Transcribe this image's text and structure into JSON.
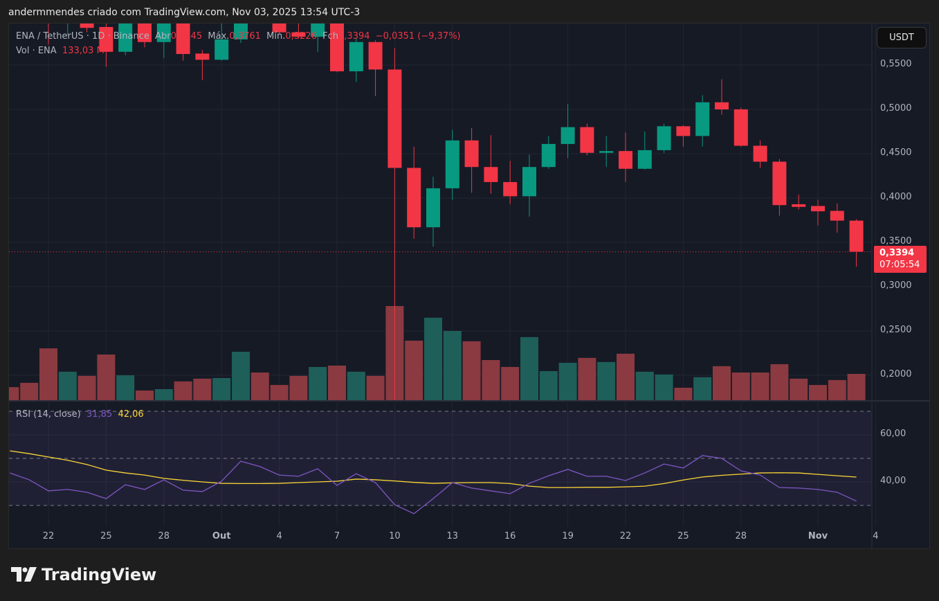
{
  "header": {
    "text": "andermmendes criado com TradingView.com, Nov 03, 2025 13:54 UTC-3"
  },
  "legend": {
    "symbol": "ENA / TetherUS · 1D · Binance",
    "open_label": "Abr",
    "open": "0,3745",
    "high_label": "Máx.",
    "high": "0,3761",
    "low_label": "Mín.",
    "low": "0,3226",
    "close_label": "Fch",
    "close": "0,3394",
    "change": "−0,0351 (−9,37%)",
    "volume_label": "Vol · ENA",
    "volume": "133,03 M"
  },
  "rsi_legend": {
    "label": "RSI (14, close)",
    "rsi": "31,85",
    "ma": "42,06"
  },
  "currency_button": "USDT",
  "last_price": {
    "price": "0,3394",
    "countdown": "07:05:54"
  },
  "colors": {
    "up": "#089981",
    "down": "#f23645",
    "rsi": "#7e57c2",
    "rsi_ma": "#fdd835",
    "background": "#161a25"
  },
  "price_axis": [
    "0,5500",
    "0,5000",
    "0,4500",
    "0,4000",
    "0,3500",
    "0,3000",
    "0,2500",
    "0,2000"
  ],
  "rsi_axis": [
    "60,00",
    "40,00"
  ],
  "time_axis": [
    {
      "label": "22",
      "date": "2025-09-22"
    },
    {
      "label": "25",
      "date": "2025-09-25"
    },
    {
      "label": "28",
      "date": "2025-09-28"
    },
    {
      "label": "Out",
      "date": "2025-10-01",
      "bold": true
    },
    {
      "label": "4",
      "date": "2025-10-04"
    },
    {
      "label": "7",
      "date": "2025-10-07"
    },
    {
      "label": "10",
      "date": "2025-10-10"
    },
    {
      "label": "13",
      "date": "2025-10-13"
    },
    {
      "label": "16",
      "date": "2025-10-16"
    },
    {
      "label": "19",
      "date": "2025-10-19"
    },
    {
      "label": "22",
      "date": "2025-10-22"
    },
    {
      "label": "25",
      "date": "2025-10-25"
    },
    {
      "label": "28",
      "date": "2025-10-28"
    },
    {
      "label": "Nov",
      "date": "2025-11-01",
      "bold": true
    },
    {
      "label": "4",
      "date": "2025-11-04"
    }
  ],
  "chart_data": {
    "type": "candlestick",
    "columns": [
      "date",
      "open",
      "high",
      "low",
      "close",
      "volume_M",
      "rsi",
      "rsi_ma"
    ],
    "price_range": [
      0.17,
      0.6
    ],
    "rsi_range": [
      20,
      80
    ],
    "rsi_bands": [
      70,
      50,
      30
    ],
    "rows": [
      [
        "2025-09-20",
        0.615,
        0.625,
        0.605,
        0.61,
        66,
        43.8,
        53.2
      ],
      [
        "2025-09-21",
        0.61,
        0.62,
        0.6,
        0.605,
        88,
        40.9,
        52.0
      ],
      [
        "2025-09-22",
        0.605,
        0.612,
        0.573,
        0.598,
        262,
        36.2,
        50.6
      ],
      [
        "2025-09-23",
        0.597,
        0.61,
        0.584,
        0.604,
        144,
        36.8,
        49.2
      ],
      [
        "2025-09-24",
        0.604,
        0.608,
        0.587,
        0.592,
        123,
        35.6,
        47.4
      ],
      [
        "2025-09-25",
        0.593,
        0.605,
        0.548,
        0.565,
        231,
        32.9,
        45.0
      ],
      [
        "2025-09-26",
        0.565,
        0.61,
        0.561,
        0.602,
        126,
        38.8,
        43.8
      ],
      [
        "2025-09-27",
        0.602,
        0.607,
        0.57,
        0.576,
        49,
        36.8,
        42.9
      ],
      [
        "2025-09-28",
        0.576,
        0.61,
        0.558,
        0.604,
        56,
        40.9,
        41.5
      ],
      [
        "2025-09-29",
        0.604,
        0.61,
        0.555,
        0.5625,
        95,
        36.5,
        40.7
      ],
      [
        "2025-09-30",
        0.563,
        0.567,
        0.533,
        0.556,
        109,
        35.9,
        40.0
      ],
      [
        "2025-10-01",
        0.556,
        0.6,
        0.555,
        0.579,
        112,
        40.3,
        39.4
      ],
      [
        "2025-10-02",
        0.579,
        0.612,
        0.575,
        0.605,
        245,
        48.8,
        39.3
      ],
      [
        "2025-10-03",
        0.605,
        0.615,
        0.598,
        0.6,
        140,
        46.5,
        39.3
      ],
      [
        "2025-10-04",
        0.6,
        0.606,
        0.585,
        0.587,
        77,
        42.9,
        39.4
      ],
      [
        "2025-10-05",
        0.587,
        0.6,
        0.58,
        0.582,
        123,
        42.4,
        39.7
      ],
      [
        "2025-10-06",
        0.582,
        0.605,
        0.565,
        0.6,
        168,
        45.6,
        40.0
      ],
      [
        "2025-10-07",
        0.6,
        0.605,
        0.542,
        0.543,
        175,
        38.5,
        40.3
      ],
      [
        "2025-10-08",
        0.543,
        0.58,
        0.531,
        0.576,
        144,
        43.5,
        41.2
      ],
      [
        "2025-10-09",
        0.576,
        0.578,
        0.515,
        0.545,
        123,
        39.7,
        40.9
      ],
      [
        "2025-10-10",
        0.545,
        0.569,
        0.17,
        0.434,
        476,
        30.3,
        40.4
      ],
      [
        "2025-10-11",
        0.434,
        0.458,
        0.354,
        0.367,
        301,
        26.5,
        39.8
      ],
      [
        "2025-10-12",
        0.367,
        0.424,
        0.345,
        0.411,
        417,
        32.9,
        39.4
      ],
      [
        "2025-10-13",
        0.411,
        0.477,
        0.398,
        0.465,
        350,
        39.7,
        39.6
      ],
      [
        "2025-10-14",
        0.465,
        0.479,
        0.406,
        0.435,
        298,
        37.4,
        39.7
      ],
      [
        "2025-10-15",
        0.435,
        0.471,
        0.405,
        0.418,
        203,
        36.2,
        39.7
      ],
      [
        "2025-10-16",
        0.418,
        0.442,
        0.393,
        0.402,
        168,
        35.0,
        39.3
      ],
      [
        "2025-10-17",
        0.402,
        0.449,
        0.379,
        0.435,
        319,
        39.4,
        38.2
      ],
      [
        "2025-10-18",
        0.435,
        0.47,
        0.433,
        0.461,
        147,
        42.6,
        37.6
      ],
      [
        "2025-10-19",
        0.461,
        0.506,
        0.445,
        0.48,
        189,
        45.3,
        37.6
      ],
      [
        "2025-10-20",
        0.48,
        0.484,
        0.448,
        0.451,
        214,
        42.4,
        37.7
      ],
      [
        "2025-10-21",
        0.451,
        0.47,
        0.435,
        0.453,
        193,
        42.4,
        37.7
      ],
      [
        "2025-10-22",
        0.453,
        0.474,
        0.418,
        0.433,
        235,
        40.6,
        37.9
      ],
      [
        "2025-10-23",
        0.433,
        0.475,
        0.432,
        0.454,
        144,
        43.8,
        38.2
      ],
      [
        "2025-10-24",
        0.454,
        0.484,
        0.451,
        0.481,
        130,
        47.6,
        39.3
      ],
      [
        "2025-10-25",
        0.481,
        0.482,
        0.458,
        0.47,
        63,
        45.9,
        40.8
      ],
      [
        "2025-10-26",
        0.47,
        0.516,
        0.458,
        0.508,
        116,
        51.2,
        42.1
      ],
      [
        "2025-10-27",
        0.508,
        0.534,
        0.494,
        0.5,
        172,
        50.0,
        42.8
      ],
      [
        "2025-10-28",
        0.5,
        0.502,
        0.458,
        0.459,
        140,
        44.7,
        43.3
      ],
      [
        "2025-10-29",
        0.459,
        0.465,
        0.434,
        0.441,
        140,
        42.9,
        43.8
      ],
      [
        "2025-10-30",
        0.441,
        0.444,
        0.38,
        0.392,
        182,
        37.6,
        43.9
      ],
      [
        "2025-10-31",
        0.393,
        0.404,
        0.387,
        0.39,
        109,
        37.4,
        43.8
      ],
      [
        "2025-11-01",
        0.391,
        0.398,
        0.369,
        0.385,
        77,
        36.8,
        43.2
      ],
      [
        "2025-11-02",
        0.3855,
        0.394,
        0.361,
        0.3745,
        102,
        35.6,
        42.6
      ],
      [
        "2025-11-03",
        0.3745,
        0.3761,
        0.3226,
        0.3394,
        133.03,
        31.85,
        42.06
      ]
    ]
  },
  "logo": {
    "text": "TradingView"
  }
}
